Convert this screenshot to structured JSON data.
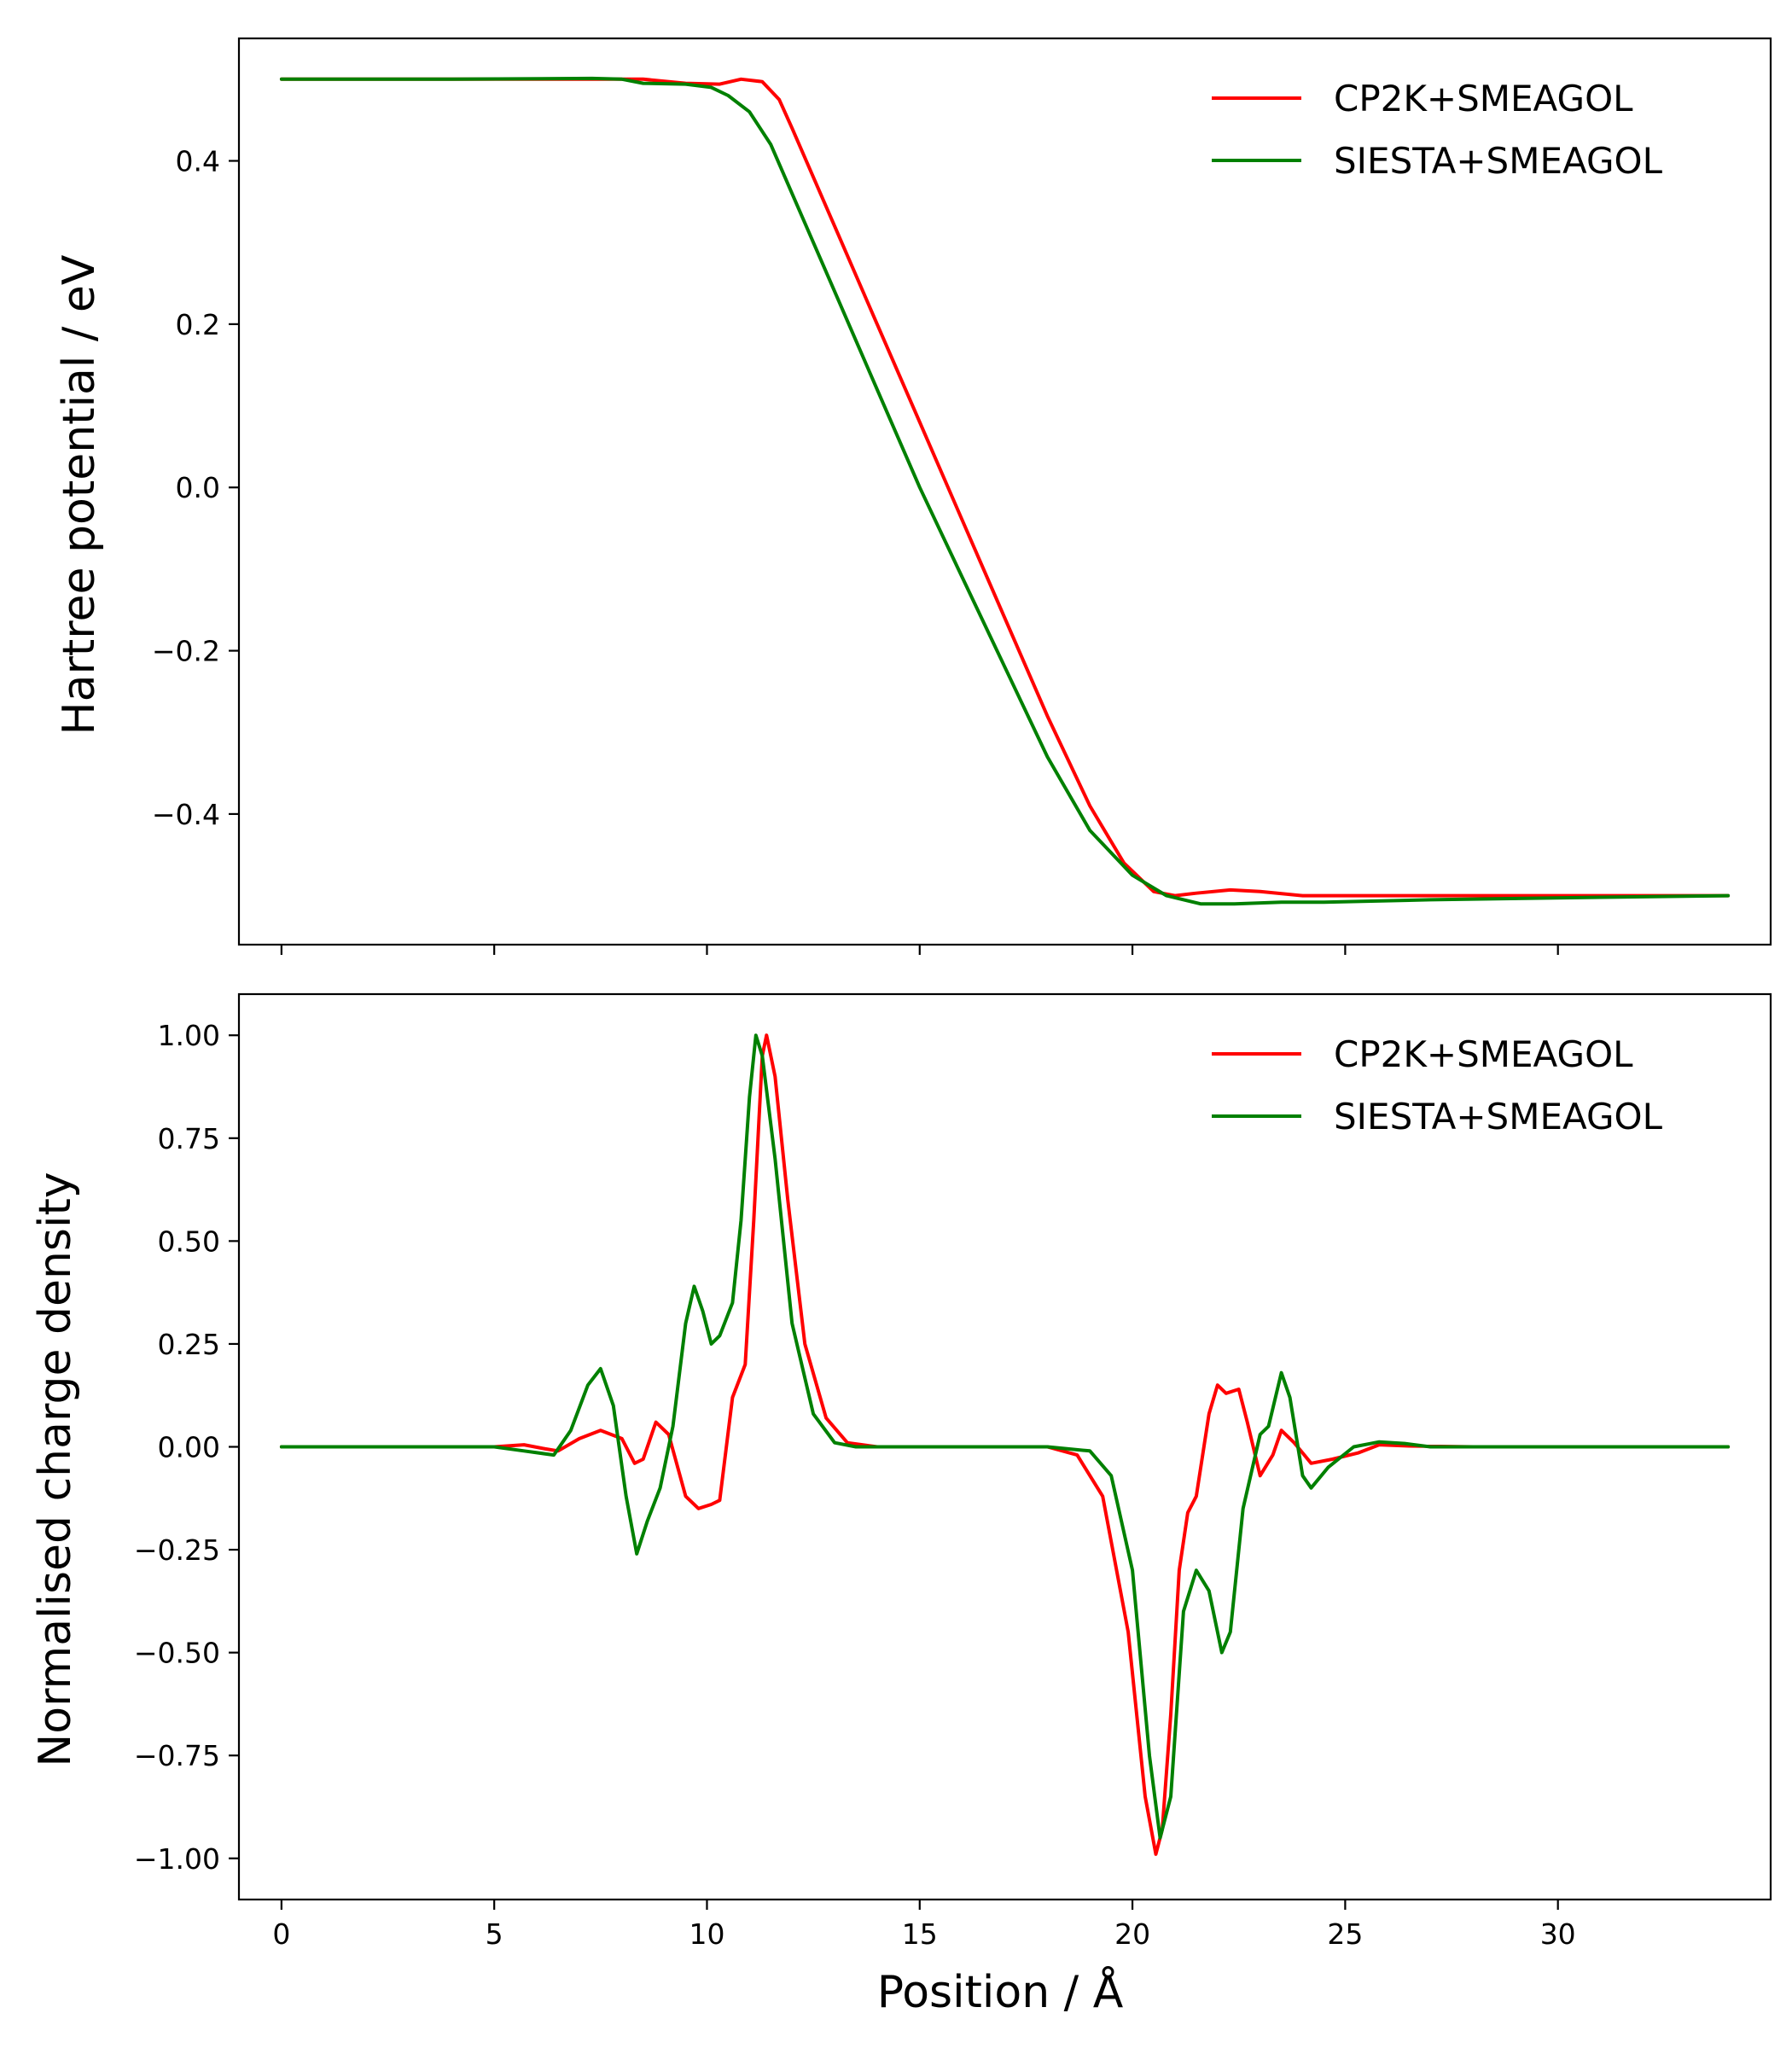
{
  "figure": {
    "xlabel": "Position / Å"
  },
  "chart_data": [
    {
      "type": "line",
      "ylabel": "Hartree potential / eV",
      "xlim": [
        -1.0,
        35.0
      ],
      "ylim": [
        -0.56,
        0.55
      ],
      "xticks": [
        0,
        5,
        10,
        15,
        20,
        25,
        30
      ],
      "yticks": [
        0.4,
        0.2,
        0.0,
        -0.2,
        -0.4
      ],
      "ytick_labels": [
        "0.4",
        "0.2",
        "0.0",
        "−0.2",
        "−0.4"
      ],
      "show_x_tick_labels": false,
      "grid": false,
      "legend": "top-right",
      "series": [
        {
          "name": "CP2K+SMEAGOL",
          "color": "#ff0000",
          "points": [
            [
              0,
              0.5
            ],
            [
              4,
              0.5
            ],
            [
              7,
              0.5
            ],
            [
              8.5,
              0.5
            ],
            [
              9.5,
              0.495
            ],
            [
              10.3,
              0.494
            ],
            [
              10.8,
              0.5
            ],
            [
              11.3,
              0.497
            ],
            [
              11.7,
              0.475
            ],
            [
              12,
              0.44
            ],
            [
              13,
              0.32
            ],
            [
              14,
              0.2
            ],
            [
              15,
              0.08
            ],
            [
              16,
              -0.04
            ],
            [
              17,
              -0.16
            ],
            [
              18,
              -0.28
            ],
            [
              19,
              -0.39
            ],
            [
              19.8,
              -0.46
            ],
            [
              20.5,
              -0.495
            ],
            [
              21,
              -0.5
            ],
            [
              21.5,
              -0.497
            ],
            [
              22.3,
              -0.493
            ],
            [
              23,
              -0.495
            ],
            [
              24,
              -0.5
            ],
            [
              27,
              -0.5
            ],
            [
              31,
              -0.5
            ],
            [
              34,
              -0.5
            ]
          ]
        },
        {
          "name": "SIESTA+SMEAGOL",
          "color": "#008000",
          "points": [
            [
              0,
              0.5
            ],
            [
              4,
              0.5
            ],
            [
              7.3,
              0.501
            ],
            [
              8,
              0.5
            ],
            [
              8.5,
              0.495
            ],
            [
              9.5,
              0.494
            ],
            [
              10.1,
              0.49
            ],
            [
              10.5,
              0.48
            ],
            [
              11,
              0.46
            ],
            [
              11.5,
              0.42
            ],
            [
              12,
              0.36
            ],
            [
              13,
              0.24
            ],
            [
              14,
              0.12
            ],
            [
              15,
              0.0
            ],
            [
              16,
              -0.11
            ],
            [
              17,
              -0.22
            ],
            [
              18,
              -0.33
            ],
            [
              19,
              -0.42
            ],
            [
              20,
              -0.475
            ],
            [
              20.8,
              -0.5
            ],
            [
              21.6,
              -0.51
            ],
            [
              22.4,
              -0.51
            ],
            [
              23.5,
              -0.508
            ],
            [
              24.5,
              -0.508
            ],
            [
              27,
              -0.505
            ],
            [
              31,
              -0.502
            ],
            [
              34,
              -0.5
            ]
          ]
        }
      ]
    },
    {
      "type": "line",
      "ylabel": "Normalised charge density",
      "xlim": [
        -1.0,
        35.0
      ],
      "ylim": [
        -1.1,
        1.1
      ],
      "xticks": [
        0,
        5,
        10,
        15,
        20,
        25,
        30
      ],
      "yticks": [
        1.0,
        0.75,
        0.5,
        0.25,
        0.0,
        -0.25,
        -0.5,
        -0.75,
        -1.0
      ],
      "ytick_labels": [
        "1.00",
        "0.75",
        "0.50",
        "0.25",
        "0.00",
        "−0.25",
        "−0.50",
        "−0.75",
        "−1.00"
      ],
      "show_x_tick_labels": true,
      "grid": false,
      "legend": "top-right",
      "series": [
        {
          "name": "CP2K+SMEAGOL",
          "color": "#ff0000",
          "points": [
            [
              0,
              0
            ],
            [
              5,
              0
            ],
            [
              5.7,
              0.005
            ],
            [
              6.2,
              -0.005
            ],
            [
              6.5,
              -0.01
            ],
            [
              7,
              0.02
            ],
            [
              7.5,
              0.04
            ],
            [
              8,
              0.02
            ],
            [
              8.3,
              -0.04
            ],
            [
              8.5,
              -0.03
            ],
            [
              8.8,
              0.06
            ],
            [
              9.1,
              0.03
            ],
            [
              9.5,
              -0.12
            ],
            [
              9.8,
              -0.15
            ],
            [
              10.1,
              -0.14
            ],
            [
              10.3,
              -0.13
            ],
            [
              10.6,
              0.12
            ],
            [
              10.9,
              0.2
            ],
            [
              11.1,
              0.55
            ],
            [
              11.3,
              0.95
            ],
            [
              11.4,
              1.0
            ],
            [
              11.6,
              0.9
            ],
            [
              11.9,
              0.6
            ],
            [
              12.3,
              0.25
            ],
            [
              12.8,
              0.07
            ],
            [
              13.3,
              0.01
            ],
            [
              14,
              0
            ],
            [
              18,
              0
            ],
            [
              18.7,
              -0.02
            ],
            [
              19.3,
              -0.12
            ],
            [
              19.9,
              -0.45
            ],
            [
              20.3,
              -0.85
            ],
            [
              20.55,
              -0.99
            ],
            [
              20.7,
              -0.93
            ],
            [
              20.9,
              -0.65
            ],
            [
              21.1,
              -0.3
            ],
            [
              21.3,
              -0.16
            ],
            [
              21.5,
              -0.12
            ],
            [
              21.8,
              0.08
            ],
            [
              22,
              0.15
            ],
            [
              22.2,
              0.13
            ],
            [
              22.5,
              0.14
            ],
            [
              22.7,
              0.06
            ],
            [
              23,
              -0.07
            ],
            [
              23.3,
              -0.02
            ],
            [
              23.5,
              0.04
            ],
            [
              23.8,
              0.01
            ],
            [
              24.2,
              -0.04
            ],
            [
              24.7,
              -0.03
            ],
            [
              25.3,
              -0.015
            ],
            [
              25.8,
              0.005
            ],
            [
              26.5,
              0.002
            ],
            [
              28,
              0
            ],
            [
              34,
              0
            ]
          ]
        },
        {
          "name": "SIESTA+SMEAGOL",
          "color": "#008000",
          "points": [
            [
              0,
              0
            ],
            [
              5,
              0
            ],
            [
              5.7,
              -0.01
            ],
            [
              6.4,
              -0.02
            ],
            [
              6.8,
              0.04
            ],
            [
              7.2,
              0.15
            ],
            [
              7.5,
              0.19
            ],
            [
              7.8,
              0.1
            ],
            [
              8.1,
              -0.12
            ],
            [
              8.35,
              -0.26
            ],
            [
              8.6,
              -0.18
            ],
            [
              8.9,
              -0.1
            ],
            [
              9.2,
              0.05
            ],
            [
              9.5,
              0.3
            ],
            [
              9.7,
              0.39
            ],
            [
              9.9,
              0.33
            ],
            [
              10.1,
              0.25
            ],
            [
              10.3,
              0.27
            ],
            [
              10.6,
              0.35
            ],
            [
              10.8,
              0.55
            ],
            [
              11.0,
              0.85
            ],
            [
              11.15,
              1.0
            ],
            [
              11.3,
              0.95
            ],
            [
              11.6,
              0.7
            ],
            [
              12.0,
              0.3
            ],
            [
              12.5,
              0.08
            ],
            [
              13,
              0.01
            ],
            [
              13.5,
              0
            ],
            [
              18,
              0
            ],
            [
              19,
              -0.01
            ],
            [
              19.5,
              -0.07
            ],
            [
              20,
              -0.3
            ],
            [
              20.4,
              -0.75
            ],
            [
              20.65,
              -0.95
            ],
            [
              20.9,
              -0.85
            ],
            [
              21.2,
              -0.4
            ],
            [
              21.5,
              -0.3
            ],
            [
              21.8,
              -0.35
            ],
            [
              22.1,
              -0.5
            ],
            [
              22.3,
              -0.45
            ],
            [
              22.6,
              -0.15
            ],
            [
              23.0,
              0.03
            ],
            [
              23.2,
              0.05
            ],
            [
              23.5,
              0.18
            ],
            [
              23.7,
              0.12
            ],
            [
              24.0,
              -0.07
            ],
            [
              24.2,
              -0.1
            ],
            [
              24.6,
              -0.05
            ],
            [
              25.2,
              0.0
            ],
            [
              25.8,
              0.012
            ],
            [
              26.4,
              0.008
            ],
            [
              27,
              0
            ],
            [
              34,
              0
            ]
          ]
        }
      ]
    }
  ]
}
